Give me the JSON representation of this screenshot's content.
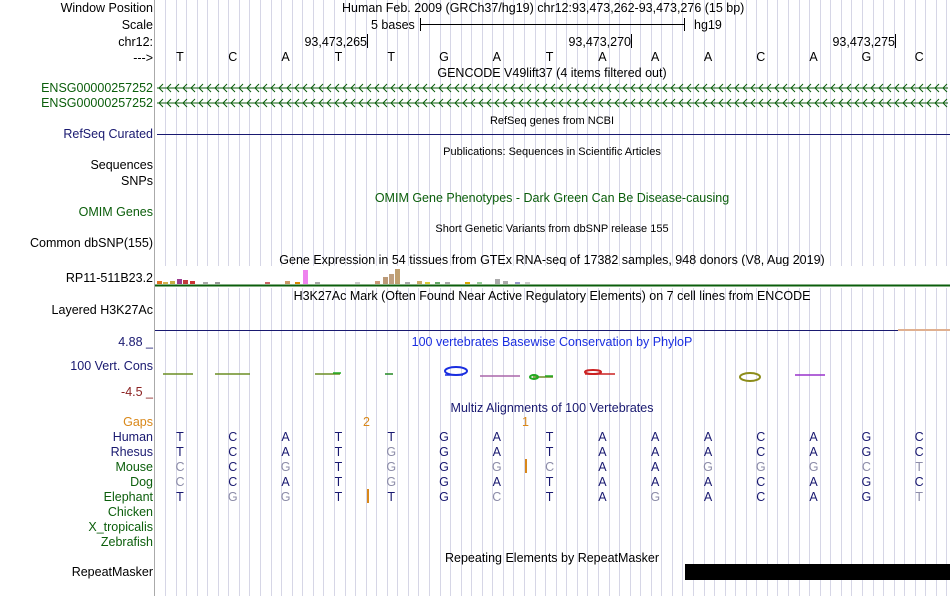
{
  "colors": {
    "navy": "#191970",
    "green": "#0b5e0b",
    "darkgreen": "#00441b",
    "orange": "#d9881a",
    "darkred": "#8b2222",
    "phylo_blue": "#1a2ee0",
    "grey": "#8c8ca8"
  },
  "header": {
    "window_position_label": "Window Position",
    "window_position_value": "Human Feb. 2009 (GRCh37/hg19)   chr12:93,473,262-93,473,276 (15 bp)",
    "scale_label": "Scale",
    "scale_value": "5 bases",
    "scale_assembly": "hg19",
    "chrom_label": "chr12:",
    "positions": [
      "93,473,265",
      "93,473,270",
      "93,473,275"
    ],
    "arrow_label": "--->",
    "bases": [
      "T",
      "C",
      "A",
      "T",
      "T",
      "G",
      "A",
      "T",
      "A",
      "A",
      "A",
      "C",
      "A",
      "G",
      "C"
    ]
  },
  "tracks": {
    "gencode_title": "GENCODE V49lift37 (4 items filtered out)",
    "gencode_items": [
      "ENSG00000257252",
      "ENSG00000257252"
    ],
    "refseq_title": "RefSeq genes from NCBI",
    "refseq_label": "RefSeq Curated",
    "publications_title": "Publications: Sequences in Scientific Articles",
    "sequences_label": "Sequences",
    "snps_label": "SNPs",
    "omim_title": "OMIM Gene Phenotypes - Dark Green Can Be Disease-causing",
    "omim_label": "OMIM Genes",
    "dbsnp_title": "Short Genetic Variants from dbSNP release 155",
    "dbsnp_label": "Common dbSNP(155)",
    "gtex_title": "Gene Expression in 54 tissues from GTEx RNA-seq of 17382 samples, 948 donors (V8, Aug 2019)",
    "gtex_label": "RP11-511B23.2",
    "h3k27ac_title": "H3K27Ac Mark (Often Found Near Active Regulatory Elements) on 7 cell lines from ENCODE",
    "h3k27ac_label": "Layered H3K27Ac",
    "phylop_title": "100 vertebrates Basewise Conservation by PhyloP",
    "phylop_label": "100 Vert. Cons",
    "phylop_max": "4.88 _",
    "phylop_min": "-4.5 _",
    "multiz_title": "Multiz Alignments of 100 Vertebrates",
    "gaps_label": "Gaps",
    "gap_counts": [
      "2",
      "1"
    ],
    "repeat_title": "Repeating Elements by RepeatMasker",
    "repeat_label": "RepeatMasker"
  },
  "alignment": [
    {
      "species": "Human",
      "bases": [
        "T",
        "C",
        "A",
        "T",
        "T",
        "G",
        "A",
        "T",
        "A",
        "A",
        "A",
        "C",
        "A",
        "G",
        "C"
      ]
    },
    {
      "species": "Rhesus",
      "bases": [
        "T",
        "C",
        "A",
        "T",
        "G",
        "G",
        "A",
        "T",
        "A",
        "A",
        "A",
        "C",
        "A",
        "G",
        "C"
      ]
    },
    {
      "species": "Mouse",
      "bases": [
        "C",
        "C",
        "G",
        "T",
        "G",
        "G",
        "G",
        "C",
        "A",
        "A",
        "G",
        "G",
        "G",
        "C",
        "T"
      ]
    },
    {
      "species": "Dog",
      "bases": [
        "C",
        "C",
        "A",
        "T",
        "G",
        "G",
        "A",
        "T",
        "A",
        "A",
        "A",
        "C",
        "A",
        "G",
        "C"
      ]
    },
    {
      "species": "Elephant",
      "bases": [
        "T",
        "G",
        "G",
        "T",
        "T",
        "G",
        "C",
        "T",
        "A",
        "G",
        "A",
        "C",
        "A",
        "G",
        "T"
      ]
    },
    {
      "species": "Chicken",
      "bases": []
    },
    {
      "species": "X_tropicalis",
      "bases": []
    },
    {
      "species": "Zebrafish",
      "bases": []
    }
  ]
}
